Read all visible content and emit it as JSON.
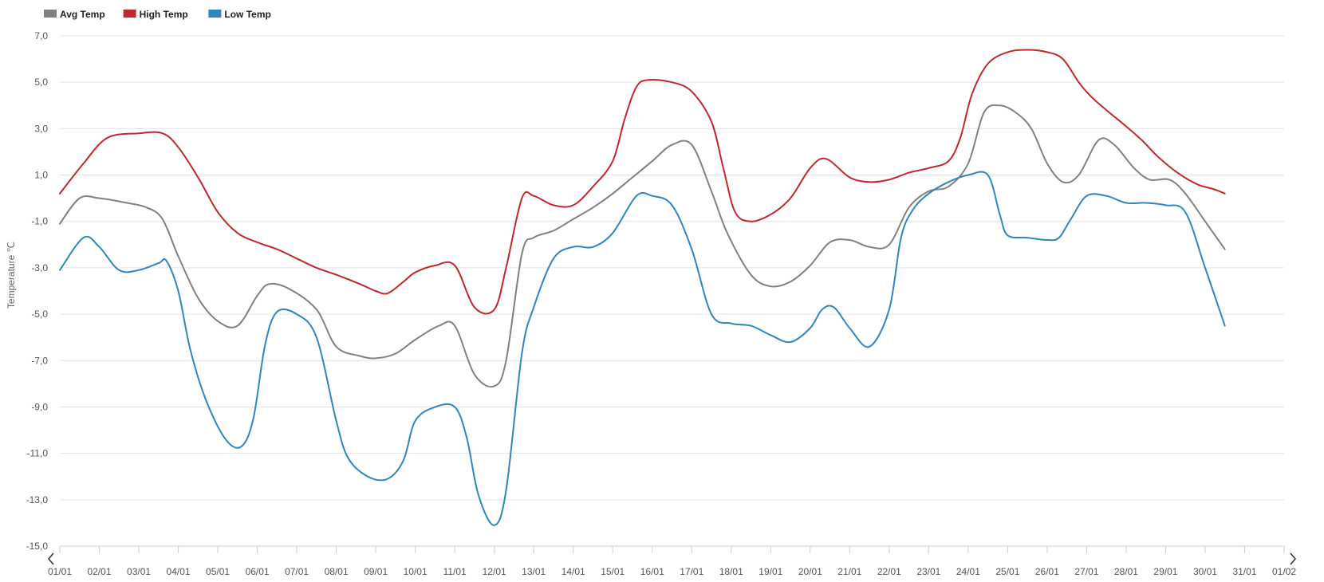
{
  "chart_data": {
    "type": "line",
    "ylabel": "Temperature ℃",
    "xlabel": "",
    "title": "",
    "ylim": [
      -15,
      7
    ],
    "y_ticks": [
      7,
      5,
      3,
      1,
      -1,
      -3,
      -5,
      -7,
      -9,
      -11,
      -13,
      -15
    ],
    "y_tick_labels": [
      "7,0",
      "5,0",
      "3,0",
      "1,0",
      "-1,0",
      "-3,0",
      "-5,0",
      "-7,0",
      "-9,0",
      "-11,0",
      "-13,0",
      "-15,0"
    ],
    "categories": [
      "01/01",
      "02/01",
      "03/01",
      "04/01",
      "05/01",
      "06/01",
      "07/01",
      "08/01",
      "09/01",
      "10/01",
      "11/01",
      "12/01",
      "13/01",
      "14/01",
      "15/01",
      "16/01",
      "17/01",
      "18/01",
      "19/01",
      "20/01",
      "21/01",
      "22/01",
      "23/01",
      "24/01",
      "25/01",
      "26/01",
      "27/01",
      "28/01",
      "29/01",
      "30/01",
      "31/01",
      "01/02"
    ],
    "grid": true,
    "legend_position": "top-left",
    "series": [
      {
        "name": "Avg Temp",
        "color": "#808080",
        "points": [
          [
            0.0,
            -1.1
          ],
          [
            0.5,
            0.0
          ],
          [
            1.0,
            0.0
          ],
          [
            1.7,
            -0.2
          ],
          [
            2.2,
            -0.4
          ],
          [
            2.6,
            -0.9
          ],
          [
            3.0,
            -2.5
          ],
          [
            3.5,
            -4.3
          ],
          [
            4.0,
            -5.3
          ],
          [
            4.5,
            -5.5
          ],
          [
            5.0,
            -4.2
          ],
          [
            5.3,
            -3.7
          ],
          [
            5.8,
            -3.9
          ],
          [
            6.5,
            -4.8
          ],
          [
            7.0,
            -6.4
          ],
          [
            7.6,
            -6.8
          ],
          [
            8.0,
            -6.9
          ],
          [
            8.5,
            -6.7
          ],
          [
            9.0,
            -6.1
          ],
          [
            9.6,
            -5.5
          ],
          [
            10.0,
            -5.5
          ],
          [
            10.5,
            -7.6
          ],
          [
            11.0,
            -8.1
          ],
          [
            11.3,
            -7.0
          ],
          [
            11.7,
            -2.4
          ],
          [
            12.0,
            -1.7
          ],
          [
            12.5,
            -1.4
          ],
          [
            13.0,
            -0.9
          ],
          [
            13.5,
            -0.4
          ],
          [
            14.0,
            0.2
          ],
          [
            14.5,
            0.9
          ],
          [
            15.0,
            1.6
          ],
          [
            15.5,
            2.3
          ],
          [
            16.0,
            2.3
          ],
          [
            16.5,
            0.3
          ],
          [
            16.9,
            -1.5
          ],
          [
            17.5,
            -3.3
          ],
          [
            18.0,
            -3.8
          ],
          [
            18.5,
            -3.6
          ],
          [
            19.0,
            -2.9
          ],
          [
            19.5,
            -1.9
          ],
          [
            20.0,
            -1.8
          ],
          [
            20.5,
            -2.1
          ],
          [
            21.0,
            -2.0
          ],
          [
            21.5,
            -0.4
          ],
          [
            22.0,
            0.3
          ],
          [
            22.5,
            0.5
          ],
          [
            23.0,
            1.5
          ],
          [
            23.4,
            3.7
          ],
          [
            23.8,
            4.0
          ],
          [
            24.2,
            3.7
          ],
          [
            24.6,
            3.0
          ],
          [
            25.0,
            1.5
          ],
          [
            25.4,
            0.7
          ],
          [
            25.8,
            1.0
          ],
          [
            26.3,
            2.5
          ],
          [
            26.7,
            2.3
          ],
          [
            27.2,
            1.3
          ],
          [
            27.6,
            0.8
          ],
          [
            28.1,
            0.8
          ],
          [
            28.5,
            0.2
          ],
          [
            29.0,
            -1.0
          ],
          [
            29.5,
            -2.2
          ]
        ]
      },
      {
        "name": "High Temp",
        "color": "#c1272d",
        "points": [
          [
            0.0,
            0.2
          ],
          [
            0.6,
            1.5
          ],
          [
            1.2,
            2.6
          ],
          [
            2.0,
            2.8
          ],
          [
            2.6,
            2.8
          ],
          [
            3.0,
            2.2
          ],
          [
            3.5,
            0.9
          ],
          [
            4.0,
            -0.6
          ],
          [
            4.5,
            -1.5
          ],
          [
            5.0,
            -1.9
          ],
          [
            5.5,
            -2.2
          ],
          [
            6.0,
            -2.6
          ],
          [
            6.5,
            -3.0
          ],
          [
            7.0,
            -3.3
          ],
          [
            7.6,
            -3.7
          ],
          [
            8.0,
            -4.0
          ],
          [
            8.3,
            -4.1
          ],
          [
            8.7,
            -3.6
          ],
          [
            9.0,
            -3.2
          ],
          [
            9.5,
            -2.9
          ],
          [
            10.0,
            -2.9
          ],
          [
            10.5,
            -4.7
          ],
          [
            11.0,
            -4.8
          ],
          [
            11.3,
            -3.0
          ],
          [
            11.7,
            0.0
          ],
          [
            12.0,
            0.1
          ],
          [
            12.5,
            -0.3
          ],
          [
            13.0,
            -0.3
          ],
          [
            13.5,
            0.5
          ],
          [
            14.0,
            1.6
          ],
          [
            14.3,
            3.4
          ],
          [
            14.6,
            4.8
          ],
          [
            14.9,
            5.1
          ],
          [
            15.5,
            5.0
          ],
          [
            16.0,
            4.6
          ],
          [
            16.5,
            3.3
          ],
          [
            16.8,
            1.3
          ],
          [
            17.1,
            -0.6
          ],
          [
            17.5,
            -1.0
          ],
          [
            18.0,
            -0.7
          ],
          [
            18.5,
            0.0
          ],
          [
            19.0,
            1.3
          ],
          [
            19.4,
            1.7
          ],
          [
            20.0,
            0.9
          ],
          [
            20.5,
            0.7
          ],
          [
            21.0,
            0.8
          ],
          [
            21.5,
            1.1
          ],
          [
            22.0,
            1.3
          ],
          [
            22.5,
            1.6
          ],
          [
            22.8,
            2.6
          ],
          [
            23.1,
            4.5
          ],
          [
            23.5,
            5.8
          ],
          [
            24.0,
            6.3
          ],
          [
            24.5,
            6.4
          ],
          [
            25.0,
            6.3
          ],
          [
            25.4,
            6.0
          ],
          [
            25.8,
            5.0
          ],
          [
            26.1,
            4.4
          ],
          [
            26.5,
            3.8
          ],
          [
            27.0,
            3.1
          ],
          [
            27.4,
            2.5
          ],
          [
            27.8,
            1.8
          ],
          [
            28.3,
            1.1
          ],
          [
            28.8,
            0.6
          ],
          [
            29.2,
            0.4
          ],
          [
            29.5,
            0.2
          ]
        ]
      },
      {
        "name": "Low Temp",
        "color": "#2e86c1",
        "points": [
          [
            0.0,
            -3.1
          ],
          [
            0.6,
            -1.7
          ],
          [
            1.0,
            -2.1
          ],
          [
            1.5,
            -3.1
          ],
          [
            2.0,
            -3.1
          ],
          [
            2.5,
            -2.8
          ],
          [
            2.7,
            -2.7
          ],
          [
            3.0,
            -4.0
          ],
          [
            3.3,
            -6.5
          ],
          [
            3.7,
            -8.7
          ],
          [
            4.2,
            -10.4
          ],
          [
            4.6,
            -10.7
          ],
          [
            4.9,
            -9.5
          ],
          [
            5.2,
            -6.3
          ],
          [
            5.5,
            -4.9
          ],
          [
            6.0,
            -5.0
          ],
          [
            6.5,
            -6.0
          ],
          [
            7.0,
            -9.6
          ],
          [
            7.3,
            -11.2
          ],
          [
            7.8,
            -12.0
          ],
          [
            8.3,
            -12.1
          ],
          [
            8.7,
            -11.3
          ],
          [
            9.0,
            -9.6
          ],
          [
            9.5,
            -9.0
          ],
          [
            10.0,
            -9.0
          ],
          [
            10.3,
            -10.3
          ],
          [
            10.6,
            -12.8
          ],
          [
            11.0,
            -14.1
          ],
          [
            11.3,
            -12.6
          ],
          [
            11.7,
            -6.7
          ],
          [
            12.0,
            -4.7
          ],
          [
            12.5,
            -2.6
          ],
          [
            13.0,
            -2.1
          ],
          [
            13.5,
            -2.1
          ],
          [
            14.0,
            -1.5
          ],
          [
            14.6,
            0.1
          ],
          [
            15.0,
            0.1
          ],
          [
            15.5,
            -0.3
          ],
          [
            16.0,
            -2.2
          ],
          [
            16.5,
            -5.0
          ],
          [
            17.0,
            -5.4
          ],
          [
            17.5,
            -5.5
          ],
          [
            18.0,
            -5.9
          ],
          [
            18.5,
            -6.2
          ],
          [
            19.0,
            -5.6
          ],
          [
            19.3,
            -4.8
          ],
          [
            19.6,
            -4.7
          ],
          [
            20.0,
            -5.6
          ],
          [
            20.5,
            -6.4
          ],
          [
            21.0,
            -4.8
          ],
          [
            21.3,
            -1.7
          ],
          [
            21.6,
            -0.5
          ],
          [
            22.0,
            0.2
          ],
          [
            22.5,
            0.7
          ],
          [
            23.0,
            1.0
          ],
          [
            23.5,
            1.0
          ],
          [
            23.8,
            -0.7
          ],
          [
            24.0,
            -1.6
          ],
          [
            24.5,
            -1.7
          ],
          [
            25.0,
            -1.8
          ],
          [
            25.3,
            -1.7
          ],
          [
            25.6,
            -0.9
          ],
          [
            26.0,
            0.1
          ],
          [
            26.5,
            0.1
          ],
          [
            27.0,
            -0.2
          ],
          [
            27.5,
            -0.2
          ],
          [
            28.0,
            -0.3
          ],
          [
            28.5,
            -0.6
          ],
          [
            29.0,
            -3.0
          ],
          [
            29.5,
            -5.5
          ]
        ]
      }
    ]
  },
  "nav": {
    "prev_icon": "chevron-left-icon",
    "next_icon": "chevron-right-icon"
  }
}
